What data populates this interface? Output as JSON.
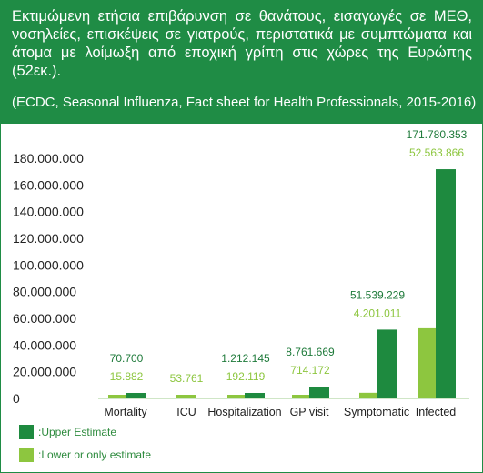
{
  "header": {
    "title": "Εκτιμώμενη ετήσια επιβάρυνση σε θανάτους, εισαγωγές σε ΜΕΘ, νοσηλείες, επισκέψεις σε γιατρούς, περιστατικά με συμπτώματα και άτομα με λοίμωξη από εποχική γρίπη στις χώρες της Ευρώπης (52εκ.).",
    "source": "(ECDC, Seasonal Influenza, Fact sheet for Health Professionals, 2015-2016)"
  },
  "colors": {
    "header_bg": "#1f8c45",
    "upper": "#1e8a3f",
    "lower": "#8dc63f",
    "upper_label": "#1e7a3a",
    "lower_label": "#8dc63f",
    "axis_text": "#222222"
  },
  "legend": {
    "upper": ":Upper Estimate",
    "lower": ":Lower or only estimate"
  },
  "chart_data": {
    "type": "bar",
    "categories": [
      "Mortality",
      "ICU",
      "Hospitalization",
      "GP visit",
      "Symptomatic",
      "Infected"
    ],
    "series": [
      {
        "name": ":Upper Estimate",
        "values": [
          70700,
          null,
          1212145,
          8761669,
          51539229,
          171780353
        ]
      },
      {
        "name": ":Lower or only estimate",
        "values": [
          15882,
          53761,
          192119,
          714172,
          4201011,
          52563866
        ]
      }
    ],
    "upper_labels": [
      "70.700",
      "",
      "1.212.145",
      "8.761.669",
      "51.539.229",
      "171.780.353"
    ],
    "lower_labels": [
      "15.882",
      "53.761",
      "192.119",
      "714.172",
      "4.201.011",
      "52.563.866"
    ],
    "y_tick_values": [
      0,
      20000000,
      40000000,
      60000000,
      80000000,
      100000000,
      120000000,
      140000000,
      160000000,
      180000000
    ],
    "y_tick_labels": [
      "0",
      "20.000.000",
      "40.000.000",
      "60.000.000",
      "80.000.000",
      "100.000.000",
      "120.000.000",
      "140.000.000",
      "160.000.000",
      "180.000.000"
    ],
    "ylim": [
      0,
      180000000
    ],
    "grid": false,
    "legend_position": "bottom-left",
    "title": "",
    "xlabel": "",
    "ylabel": ""
  }
}
